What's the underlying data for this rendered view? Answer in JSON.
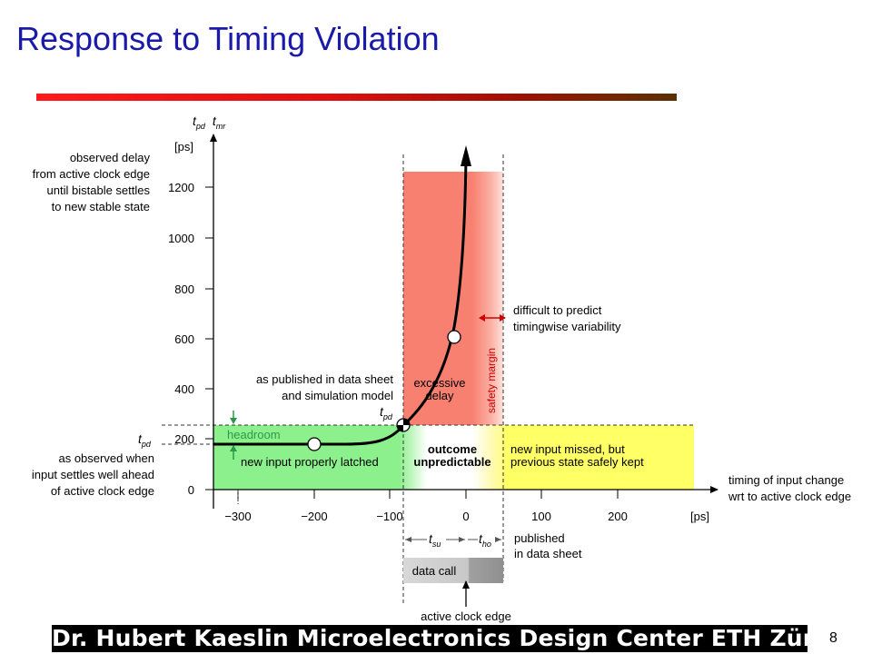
{
  "slide": {
    "title": "Response to Timing Violation",
    "footer": "Dr. Hubert Kaeslin Microelectronics Design Center ETH Zürich",
    "page_number": "8"
  },
  "diagram": {
    "y_axis": {
      "symbol_1": "t",
      "symbol_1_sub": "pd",
      "symbol_2": "t",
      "symbol_2_sub": "mr",
      "unit": "[ps]",
      "ticks": [
        "0",
        "200",
        "400",
        "600",
        "800",
        "1000",
        "1200"
      ],
      "description": [
        "observed delay",
        "from active clock edge",
        "until bistable settles",
        "to new stable state"
      ]
    },
    "x_axis": {
      "ticks": [
        "−300",
        "−200",
        "−100",
        "0",
        "100",
        "200"
      ],
      "unit": "[ps]",
      "description": [
        "timing of input change",
        "wrt to active clock edge"
      ]
    },
    "tpd_observed": {
      "symbol": "t",
      "sub": "pd",
      "lines": [
        "as observed when",
        "input settles well ahead",
        "of active clock edge"
      ]
    },
    "published": {
      "lines": [
        "as published in data sheet",
        "and simulation model"
      ],
      "symbol": "t",
      "sub": "pd"
    },
    "regions": {
      "green_top": "headroom",
      "green_bottom": "new input properly latched",
      "white": [
        "outcome",
        "unpredictable"
      ],
      "yellow": [
        "new input missed, but",
        "previous state safely kept"
      ],
      "red": [
        "excessive",
        "delay"
      ],
      "safety_margin": "safety margin"
    },
    "difficult": [
      "difficult to predict",
      "timingwise variability"
    ],
    "setup_hold": {
      "tsu_symbol": "t",
      "tsu_sub": "su",
      "tho_symbol": "t",
      "tho_sub": "ho",
      "published": [
        "published",
        "in data sheet"
      ],
      "data_call": "data call",
      "clock_edge": "active clock edge"
    },
    "colors": {
      "green": "#8cf08c",
      "red": "#f88070",
      "yellow": "#ffff66",
      "title": "#1a1aa8",
      "dark_red_arrow": "#cc0000",
      "headroom_green": "#2a9a4a"
    }
  }
}
